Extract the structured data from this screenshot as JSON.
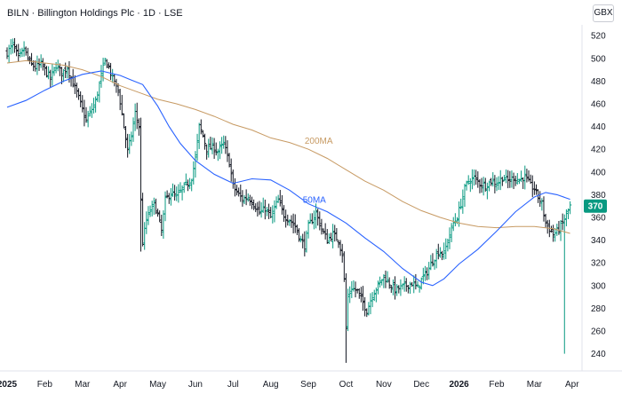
{
  "header": {
    "symbol": "BILN",
    "company": "Billington Holdings Plc",
    "interval": "1D",
    "exchange": "LSE",
    "separator": "·"
  },
  "currency": "GBX",
  "last_price_label": "370",
  "colors": {
    "up": "#089981",
    "down": "#131722",
    "ma50": "#2962ff",
    "ma200": "#c79a63",
    "badge": "#089981"
  },
  "chart_data": {
    "type": "ohlc",
    "y_ticks": [
      240,
      260,
      280,
      300,
      320,
      340,
      360,
      380,
      400,
      420,
      440,
      460,
      480,
      500,
      520
    ],
    "ylim": [
      228,
      528
    ],
    "x_tick_labels": [
      {
        "label": "2025",
        "x": 0,
        "year": true
      },
      {
        "label": "Feb",
        "x": 1
      },
      {
        "label": "Mar",
        "x": 2
      },
      {
        "label": "Apr",
        "x": 3
      },
      {
        "label": "May",
        "x": 4
      },
      {
        "label": "Jun",
        "x": 5
      },
      {
        "label": "Jul",
        "x": 6
      },
      {
        "label": "Aug",
        "x": 7
      },
      {
        "label": "Sep",
        "x": 8
      },
      {
        "label": "Oct",
        "x": 9
      },
      {
        "label": "Nov",
        "x": 10
      },
      {
        "label": "Dec",
        "x": 11
      },
      {
        "label": "2026",
        "x": 12,
        "year": true
      },
      {
        "label": "Feb",
        "x": 13
      },
      {
        "label": "Mar",
        "x": 14
      },
      {
        "label": "Apr",
        "x": 15
      }
    ],
    "xlim": [
      0,
      15.1
    ],
    "close_path": [
      [
        0.0,
        505
      ],
      [
        0.15,
        512
      ],
      [
        0.3,
        500
      ],
      [
        0.45,
        508
      ],
      [
        0.6,
        496
      ],
      [
        0.75,
        492
      ],
      [
        0.9,
        495
      ],
      [
        1.0,
        490
      ],
      [
        1.15,
        482
      ],
      [
        1.3,
        494
      ],
      [
        1.45,
        487
      ],
      [
        1.6,
        492
      ],
      [
        1.75,
        478
      ],
      [
        1.85,
        470
      ],
      [
        2.0,
        455
      ],
      [
        2.1,
        445
      ],
      [
        2.2,
        452
      ],
      [
        2.35,
        462
      ],
      [
        2.5,
        485
      ],
      [
        2.6,
        498
      ],
      [
        2.7,
        492
      ],
      [
        2.8,
        482
      ],
      [
        2.95,
        472
      ],
      [
        3.0,
        462
      ],
      [
        3.1,
        440
      ],
      [
        3.2,
        418
      ],
      [
        3.3,
        432
      ],
      [
        3.4,
        452
      ],
      [
        3.5,
        440
      ],
      [
        3.55,
        375
      ],
      [
        3.6,
        338
      ],
      [
        3.7,
        358
      ],
      [
        3.8,
        366
      ],
      [
        3.9,
        372
      ],
      [
        4.0,
        362
      ],
      [
        4.1,
        348
      ],
      [
        4.2,
        375
      ],
      [
        4.35,
        382
      ],
      [
        4.5,
        378
      ],
      [
        4.65,
        385
      ],
      [
        4.8,
        390
      ],
      [
        4.9,
        395
      ],
      [
        5.0,
        412
      ],
      [
        5.1,
        440
      ],
      [
        5.2,
        432
      ],
      [
        5.3,
        420
      ],
      [
        5.45,
        422
      ],
      [
        5.6,
        418
      ],
      [
        5.75,
        425
      ],
      [
        5.9,
        408
      ],
      [
        6.0,
        388
      ],
      [
        6.1,
        382
      ],
      [
        6.25,
        376
      ],
      [
        6.4,
        378
      ],
      [
        6.55,
        372
      ],
      [
        6.7,
        364
      ],
      [
        6.85,
        368
      ],
      [
        7.0,
        360
      ],
      [
        7.1,
        368
      ],
      [
        7.2,
        375
      ],
      [
        7.35,
        362
      ],
      [
        7.5,
        358
      ],
      [
        7.65,
        352
      ],
      [
        7.8,
        340
      ],
      [
        7.9,
        335
      ],
      [
        8.0,
        352
      ],
      [
        8.1,
        358
      ],
      [
        8.2,
        364
      ],
      [
        8.35,
        350
      ],
      [
        8.5,
        340
      ],
      [
        8.65,
        345
      ],
      [
        8.8,
        340
      ],
      [
        8.9,
        328
      ],
      [
        8.95,
        305
      ],
      [
        9.0,
        262
      ],
      [
        9.05,
        290
      ],
      [
        9.15,
        298
      ],
      [
        9.3,
        295
      ],
      [
        9.45,
        285
      ],
      [
        9.55,
        278
      ],
      [
        9.7,
        292
      ],
      [
        9.85,
        300
      ],
      [
        10.0,
        308
      ],
      [
        10.15,
        302
      ],
      [
        10.3,
        296
      ],
      [
        10.45,
        298
      ],
      [
        10.6,
        300
      ],
      [
        10.75,
        302
      ],
      [
        10.9,
        298
      ],
      [
        11.0,
        305
      ],
      [
        11.15,
        312
      ],
      [
        11.3,
        322
      ],
      [
        11.45,
        330
      ],
      [
        11.6,
        328
      ],
      [
        11.75,
        345
      ],
      [
        11.85,
        355
      ],
      [
        11.95,
        360
      ],
      [
        12.05,
        372
      ],
      [
        12.15,
        385
      ],
      [
        12.25,
        392
      ],
      [
        12.4,
        395
      ],
      [
        12.55,
        390
      ],
      [
        12.7,
        388
      ],
      [
        12.85,
        392
      ],
      [
        13.0,
        390
      ],
      [
        13.15,
        395
      ],
      [
        13.3,
        392
      ],
      [
        13.45,
        395
      ],
      [
        13.6,
        393
      ],
      [
        13.75,
        396
      ],
      [
        13.9,
        388
      ],
      [
        14.0,
        385
      ],
      [
        14.1,
        378
      ],
      [
        14.2,
        372
      ],
      [
        14.3,
        355
      ],
      [
        14.4,
        350
      ],
      [
        14.5,
        345
      ],
      [
        14.6,
        348
      ],
      [
        14.7,
        352
      ],
      [
        14.85,
        362
      ],
      [
        14.95,
        370
      ]
    ],
    "spikes": [
      {
        "x": 3.55,
        "low": 330,
        "high": 390
      },
      {
        "x": 9.0,
        "low": 232,
        "high": 305
      },
      {
        "x": 14.78,
        "low": 240,
        "high": 360
      }
    ],
    "ma50": [
      [
        0.0,
        457
      ],
      [
        0.5,
        463
      ],
      [
        1.0,
        472
      ],
      [
        1.5,
        480
      ],
      [
        2.0,
        486
      ],
      [
        2.5,
        489
      ],
      [
        3.0,
        485
      ],
      [
        3.3,
        481
      ],
      [
        3.6,
        477
      ],
      [
        4.0,
        458
      ],
      [
        4.3,
        440
      ],
      [
        4.6,
        425
      ],
      [
        5.0,
        410
      ],
      [
        5.5,
        398
      ],
      [
        6.0,
        390
      ],
      [
        6.5,
        394
      ],
      [
        7.0,
        393
      ],
      [
        7.5,
        384
      ],
      [
        8.0,
        372
      ],
      [
        8.5,
        365
      ],
      [
        9.0,
        355
      ],
      [
        9.5,
        342
      ],
      [
        10.0,
        330
      ],
      [
        10.5,
        315
      ],
      [
        11.0,
        303
      ],
      [
        11.3,
        300
      ],
      [
        11.6,
        306
      ],
      [
        12.0,
        319
      ],
      [
        12.5,
        332
      ],
      [
        13.0,
        348
      ],
      [
        13.5,
        365
      ],
      [
        14.0,
        378
      ],
      [
        14.3,
        382
      ],
      [
        14.6,
        380
      ],
      [
        14.95,
        376
      ]
    ],
    "ma200": [
      [
        0.0,
        496
      ],
      [
        0.5,
        498
      ],
      [
        1.0,
        496
      ],
      [
        1.5,
        494
      ],
      [
        2.0,
        490
      ],
      [
        2.5,
        484
      ],
      [
        3.0,
        476
      ],
      [
        3.5,
        470
      ],
      [
        4.0,
        464
      ],
      [
        4.5,
        460
      ],
      [
        5.0,
        455
      ],
      [
        5.5,
        449
      ],
      [
        6.0,
        442
      ],
      [
        6.5,
        437
      ],
      [
        7.0,
        430
      ],
      [
        7.5,
        426
      ],
      [
        8.0,
        420
      ],
      [
        8.5,
        412
      ],
      [
        9.0,
        402
      ],
      [
        9.5,
        392
      ],
      [
        10.0,
        384
      ],
      [
        10.5,
        374
      ],
      [
        11.0,
        366
      ],
      [
        11.5,
        360
      ],
      [
        12.0,
        355
      ],
      [
        12.5,
        352
      ],
      [
        13.0,
        351
      ],
      [
        13.5,
        352
      ],
      [
        14.0,
        352
      ],
      [
        14.5,
        350
      ],
      [
        14.95,
        346
      ]
    ],
    "ma_labels": [
      {
        "text": "200MA",
        "x": 7.9,
        "y": 425,
        "series": "ma200"
      },
      {
        "text": "50MA",
        "x": 7.85,
        "y": 373,
        "series": "ma50"
      }
    ],
    "last_price": 370
  }
}
